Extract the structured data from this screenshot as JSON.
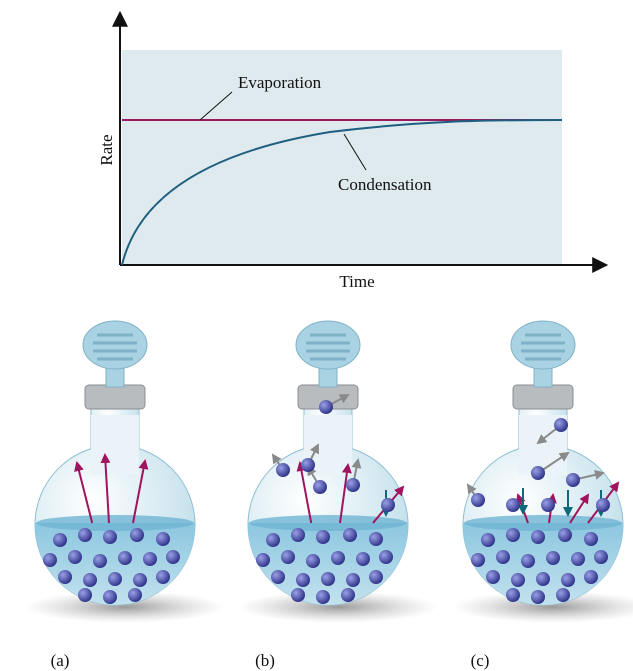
{
  "graph": {
    "y_label": "Rate",
    "x_label": "Time",
    "curves": [
      "Evaporation",
      "Condensation"
    ]
  },
  "panels": [
    "(a)",
    "(b)",
    "(c)"
  ]
}
